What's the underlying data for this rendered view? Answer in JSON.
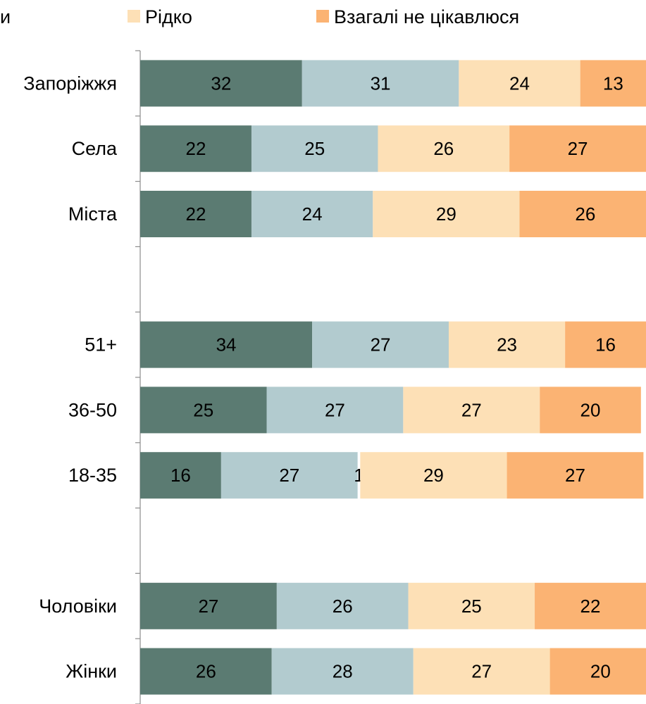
{
  "chart_data": {
    "type": "bar",
    "orientation": "horizontal",
    "stacked": true,
    "grid": false,
    "legend_position": "top",
    "xlim": [
      0,
      100
    ],
    "legend": [
      {
        "label": "и",
        "color": "#5b7b72"
      },
      {
        "label": "Рідко",
        "color": "#fde0b6"
      },
      {
        "label": "Взагалі не цікавлюся",
        "color": "#fbb373"
      }
    ],
    "colors": [
      "#5b7b72",
      "#b2cbcf",
      "#ffffff",
      "#fde0b6",
      "#fbb373"
    ],
    "categories": [
      "Запоріжжя",
      "Села",
      "Міста",
      "",
      "51+",
      "36-50",
      "18-35",
      "",
      "Чоловіки",
      "Жінки"
    ],
    "rows": [
      {
        "label": "Запоріжжя",
        "segments": [
          {
            "series": 0,
            "value": 32,
            "label": "32"
          },
          {
            "series": 1,
            "value": 31,
            "label": "31"
          },
          {
            "series": 3,
            "value": 24,
            "label": "24"
          },
          {
            "series": 4,
            "value": 13,
            "label": "13"
          }
        ]
      },
      {
        "label": "Села",
        "segments": [
          {
            "series": 0,
            "value": 22,
            "label": "22"
          },
          {
            "series": 1,
            "value": 25,
            "label": "25"
          },
          {
            "series": 3,
            "value": 26,
            "label": "26"
          },
          {
            "series": 4,
            "value": 27,
            "label": "27"
          }
        ]
      },
      {
        "label": "Міста",
        "segments": [
          {
            "series": 0,
            "value": 22,
            "label": "22"
          },
          {
            "series": 1,
            "value": 24,
            "label": "24"
          },
          {
            "series": 3,
            "value": 29,
            "label": "29"
          },
          {
            "series": 4,
            "value": 26,
            "label": "26"
          }
        ]
      },
      {
        "label": "",
        "segments": []
      },
      {
        "label": "51+",
        "segments": [
          {
            "series": 0,
            "value": 34,
            "label": "34"
          },
          {
            "series": 1,
            "value": 27,
            "label": "27"
          },
          {
            "series": 3,
            "value": 23,
            "label": "23"
          },
          {
            "series": 4,
            "value": 16,
            "label": "16"
          }
        ]
      },
      {
        "label": "36-50",
        "segments": [
          {
            "series": 0,
            "value": 25,
            "label": "25"
          },
          {
            "series": 1,
            "value": 27,
            "label": "27"
          },
          {
            "series": 3,
            "value": 27,
            "label": "27"
          },
          {
            "series": 4,
            "value": 20,
            "label": "20"
          }
        ]
      },
      {
        "label": "18-35",
        "segments": [
          {
            "series": 0,
            "value": 16,
            "label": "16"
          },
          {
            "series": 1,
            "value": 27,
            "label": "27"
          },
          {
            "series": 2,
            "value": 0.5,
            "label": "1"
          },
          {
            "series": 3,
            "value": 29,
            "label": "29"
          },
          {
            "series": 4,
            "value": 27,
            "label": "27"
          }
        ]
      },
      {
        "label": "",
        "segments": []
      },
      {
        "label": "Чоловіки",
        "segments": [
          {
            "series": 0,
            "value": 27,
            "label": "27"
          },
          {
            "series": 1,
            "value": 26,
            "label": "26"
          },
          {
            "series": 3,
            "value": 25,
            "label": "25"
          },
          {
            "series": 4,
            "value": 22,
            "label": "22"
          }
        ]
      },
      {
        "label": "Жінки",
        "segments": [
          {
            "series": 0,
            "value": 26,
            "label": "26"
          },
          {
            "series": 1,
            "value": 28,
            "label": "28"
          },
          {
            "series": 3,
            "value": 27,
            "label": "27"
          },
          {
            "series": 4,
            "value": 20,
            "label": "20"
          }
        ]
      }
    ]
  }
}
